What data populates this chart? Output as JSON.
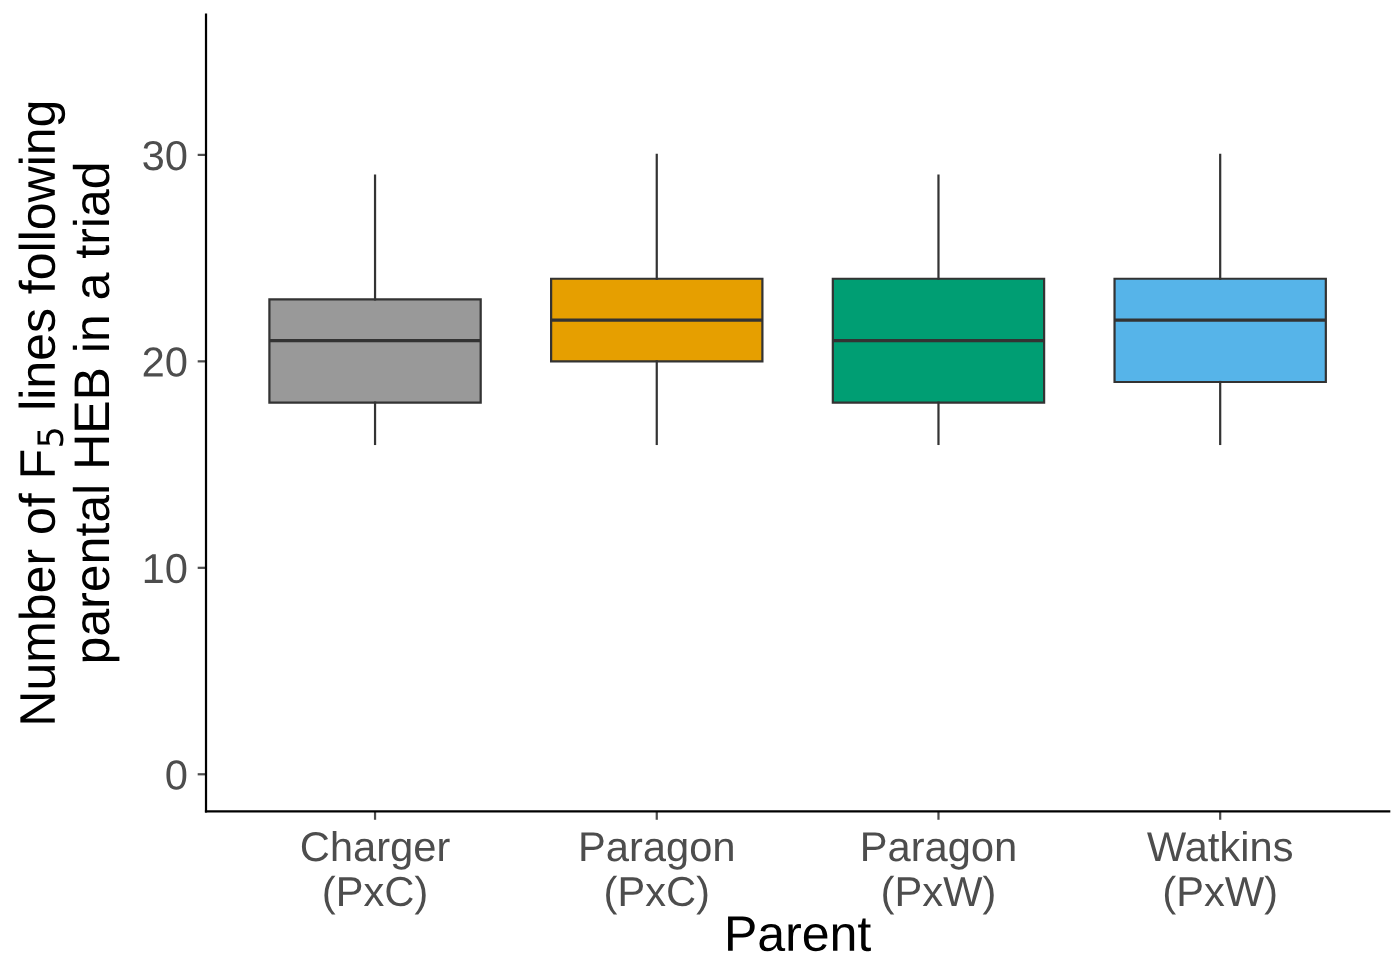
{
  "chart_data": {
    "type": "box",
    "xlabel": "Parent",
    "ylabel": "Number of F$_{5}$ lines following\nparental HEB in a triad",
    "categories": [
      "Charger\n(PxC)",
      "Paragon\n(PxC)",
      "Paragon\n(PxW)",
      "Watkins\n(PxW)"
    ],
    "colors": [
      "#999999",
      "#e69f00",
      "#009e73",
      "#56b4e9"
    ],
    "boxes": [
      {
        "low": 16,
        "q1": 18,
        "median": 21,
        "q3": 23,
        "high": 29
      },
      {
        "low": 16,
        "q1": 20,
        "median": 22,
        "q3": 24,
        "high": 30
      },
      {
        "low": 16,
        "q1": 18,
        "median": 21,
        "q3": 24,
        "high": 29
      },
      {
        "low": 16,
        "q1": 19,
        "median": 22,
        "q3": 24,
        "high": 30
      }
    ],
    "ylim": [
      -1.8,
      36.8
    ],
    "yticks": [
      0,
      10,
      20,
      30
    ],
    "grid": false
  }
}
